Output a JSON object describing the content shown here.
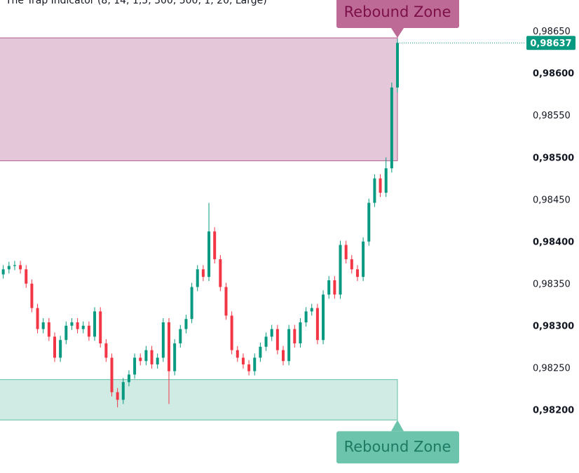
{
  "chart_data": {
    "type": "candlestick",
    "title": "The Trap Indicator (8, 14, 1,5, 300, 500, 1, 20, Large)",
    "up_color": "#089981",
    "down_color": "#f23645",
    "ylim": [
      0.98126,
      0.98688
    ],
    "yticks": [
      {
        "value": 0.9865,
        "label": "0,98650"
      },
      {
        "value": 0.986,
        "label": "0,98600"
      },
      {
        "value": 0.9855,
        "label": "0,98550"
      },
      {
        "value": 0.985,
        "label": "0,98500"
      },
      {
        "value": 0.9845,
        "label": "0,98450"
      },
      {
        "value": 0.984,
        "label": "0,98400"
      },
      {
        "value": 0.9835,
        "label": "0,98350"
      },
      {
        "value": 0.983,
        "label": "0,98300"
      },
      {
        "value": 0.9825,
        "label": "0,98250"
      },
      {
        "value": 0.982,
        "label": "0,98200"
      }
    ],
    "last_price": {
      "value": 0.98637,
      "label": "0,98637"
    },
    "zones": [
      {
        "label": "Rebound Zone",
        "top": 0.98643,
        "bottom": 0.98497,
        "color": "#e4c8d9",
        "edge": "#b05c8c",
        "tag": "#bd6a96",
        "text": "#7d1049"
      },
      {
        "label": "Rebound Zone",
        "top": 0.98237,
        "bottom": 0.98189,
        "color": "#d0ebe4",
        "edge": "#5fbfa6",
        "tag": "#6cc4ad",
        "text": "#1d7a63"
      }
    ],
    "series": {
      "open": [
        0.98362,
        0.98368,
        0.98372,
        0.98373,
        0.98368,
        0.98351,
        0.98322,
        0.98297,
        0.98305,
        0.98288,
        0.98263,
        0.98284,
        0.98301,
        0.98305,
        0.98297,
        0.98301,
        0.98288,
        0.98318,
        0.9828,
        0.98263,
        0.98222,
        0.98213,
        0.98234,
        0.98243,
        0.98263,
        0.98259,
        0.98272,
        0.98255,
        0.98263,
        0.98305,
        0.98247,
        0.9828,
        0.98297,
        0.98309,
        0.98347,
        0.98368,
        0.98359,
        0.98413,
        0.9838,
        0.98347,
        0.98313,
        0.98272,
        0.98263,
        0.98255,
        0.98247,
        0.98263,
        0.98276,
        0.98288,
        0.98297,
        0.98272,
        0.98259,
        0.98297,
        0.9828,
        0.98305,
        0.98318,
        0.98322,
        0.98284,
        0.98338,
        0.98355,
        0.98338,
        0.98397,
        0.9838,
        0.98368,
        0.98359,
        0.98401,
        0.98447,
        0.98476,
        0.98459,
        0.98488,
        0.98584
      ],
      "high": [
        0.98373,
        0.98377,
        0.98378,
        0.98378,
        0.98373,
        0.98356,
        0.98327,
        0.9831,
        0.9831,
        0.98293,
        0.98289,
        0.98306,
        0.9831,
        0.9831,
        0.98306,
        0.98306,
        0.98323,
        0.98323,
        0.98285,
        0.98268,
        0.98227,
        0.98239,
        0.98248,
        0.98268,
        0.98268,
        0.98277,
        0.98277,
        0.98268,
        0.9831,
        0.9831,
        0.98285,
        0.98302,
        0.98314,
        0.98352,
        0.98373,
        0.98373,
        0.98447,
        0.98418,
        0.98385,
        0.98352,
        0.98318,
        0.98277,
        0.98268,
        0.9826,
        0.98268,
        0.98281,
        0.98293,
        0.98302,
        0.98302,
        0.98277,
        0.98302,
        0.98302,
        0.9831,
        0.98323,
        0.98327,
        0.98327,
        0.98343,
        0.9836,
        0.9836,
        0.98402,
        0.98402,
        0.98385,
        0.98373,
        0.98406,
        0.98452,
        0.98481,
        0.98481,
        0.98501,
        0.9859,
        0.98642
      ],
      "low": [
        0.98357,
        0.98363,
        0.98367,
        0.98363,
        0.98346,
        0.98317,
        0.98292,
        0.98292,
        0.98283,
        0.98258,
        0.98258,
        0.98279,
        0.98296,
        0.98292,
        0.98292,
        0.98283,
        0.98283,
        0.98275,
        0.98258,
        0.98217,
        0.98204,
        0.98208,
        0.98229,
        0.98238,
        0.98254,
        0.98254,
        0.9825,
        0.9825,
        0.98258,
        0.98208,
        0.98242,
        0.98275,
        0.98292,
        0.98304,
        0.98342,
        0.98354,
        0.98354,
        0.98375,
        0.98342,
        0.98308,
        0.98267,
        0.98258,
        0.9825,
        0.98242,
        0.98242,
        0.98258,
        0.98271,
        0.98283,
        0.98267,
        0.98254,
        0.98254,
        0.98275,
        0.98275,
        0.983,
        0.98313,
        0.98279,
        0.98279,
        0.98333,
        0.98333,
        0.98333,
        0.98375,
        0.98363,
        0.98354,
        0.98354,
        0.98396,
        0.98442,
        0.98454,
        0.98454,
        0.98483,
        0.98578
      ],
      "close": [
        0.98368,
        0.98372,
        0.98373,
        0.98368,
        0.98351,
        0.98322,
        0.98297,
        0.98305,
        0.98288,
        0.98263,
        0.98284,
        0.98301,
        0.98305,
        0.98297,
        0.98301,
        0.98288,
        0.98318,
        0.9828,
        0.98263,
        0.98222,
        0.98213,
        0.98234,
        0.98243,
        0.98263,
        0.98259,
        0.98272,
        0.98255,
        0.98263,
        0.98305,
        0.98247,
        0.9828,
        0.98297,
        0.98309,
        0.98347,
        0.98368,
        0.98359,
        0.98413,
        0.9838,
        0.98347,
        0.98313,
        0.98272,
        0.98263,
        0.98255,
        0.98247,
        0.98263,
        0.98276,
        0.98288,
        0.98297,
        0.98272,
        0.98259,
        0.98297,
        0.9828,
        0.98305,
        0.98318,
        0.98322,
        0.98284,
        0.98338,
        0.98355,
        0.98338,
        0.98397,
        0.9838,
        0.98368,
        0.98359,
        0.98401,
        0.98447,
        0.98476,
        0.98459,
        0.98488,
        0.98584,
        0.98637
      ]
    }
  }
}
